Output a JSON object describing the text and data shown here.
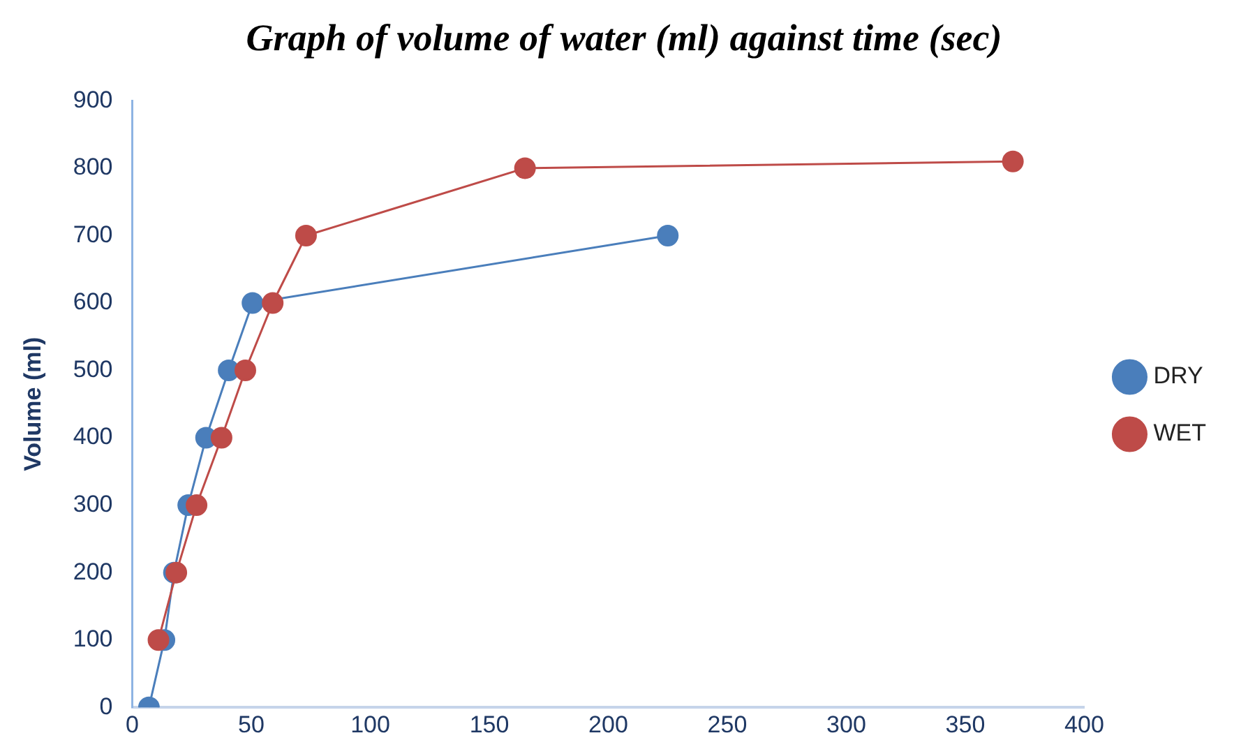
{
  "chart_data": {
    "type": "line",
    "title": "Graph of volume of water (ml) against time (sec)",
    "ylabel": "Volume (ml)",
    "xlim": [
      0,
      400
    ],
    "xticks": [
      0,
      50,
      100,
      150,
      200,
      250,
      300,
      350,
      400
    ],
    "ylim": [
      0,
      900
    ],
    "yticks": [
      0,
      100,
      200,
      300,
      400,
      500,
      600,
      700,
      800,
      900
    ],
    "grid": false,
    "legend": "right",
    "marker": "circle",
    "line_style": "solid",
    "series": [
      {
        "name": "DRY",
        "color": "#4a7ebb",
        "x": [
          7,
          13.5,
          17.5,
          23.5,
          31,
          40.5,
          50.5,
          225
        ],
        "values": [
          0,
          100,
          200,
          300,
          400,
          500,
          600,
          700
        ]
      },
      {
        "name": "WET",
        "color": "#be4b48",
        "x": [
          11,
          18.5,
          27,
          37.5,
          47.5,
          59,
          73,
          165,
          370
        ],
        "values": [
          100,
          200,
          300,
          400,
          500,
          600,
          700,
          800,
          810
        ]
      }
    ]
  }
}
